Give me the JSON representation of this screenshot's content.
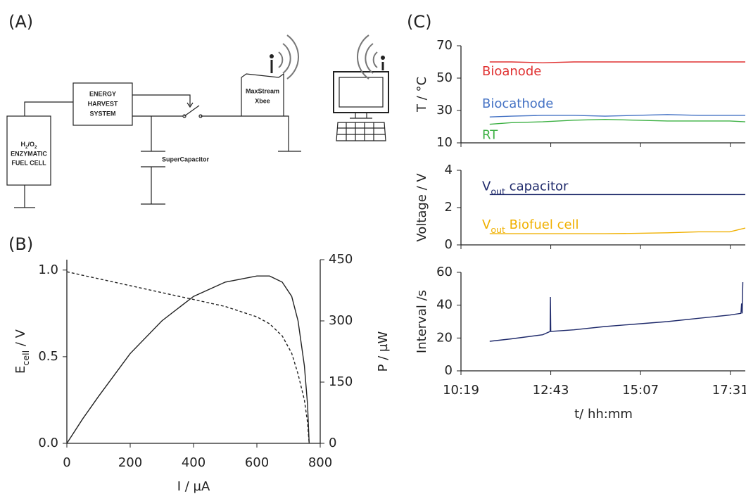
{
  "panel_labels": [
    "(A)",
    "(B)",
    "(C)"
  ],
  "diagram": {
    "fuel_cell": [
      "H2/O2",
      "ENZYMATIC",
      "FUEL CELL"
    ],
    "harvest": [
      "ENERGY",
      "HARVEST",
      "SYSTEM"
    ],
    "capacitor": "SuperCapacitor",
    "xbee": [
      "MaxStream",
      "Xbee"
    ]
  },
  "chart_data": [
    {
      "type": "line",
      "xlabel": "I / µA",
      "ylabel": "Ecell / V",
      "y2label": "P / µW",
      "x": [
        0,
        50,
        100,
        200,
        300,
        400,
        500,
        600,
        640,
        680,
        710,
        730,
        750,
        760,
        765
      ],
      "series": [
        {
          "color": "#222222",
          "linestyle": "dashed",
          "values": [
            0.99,
            0.97,
            0.95,
            0.91,
            0.87,
            0.83,
            0.79,
            0.73,
            0.69,
            0.62,
            0.52,
            0.4,
            0.25,
            0.12,
            0
          ]
        },
        {
          "color": "#222222",
          "linestyle": "solid",
          "axis": "y2",
          "values": [
            0,
            60,
            115,
            220,
            300,
            360,
            395,
            410,
            410,
            395,
            360,
            300,
            190,
            95,
            0
          ]
        }
      ],
      "xlim": [
        0,
        800
      ],
      "xticks": [
        0,
        200,
        400,
        600,
        800
      ],
      "ylim": [
        0,
        1.06
      ],
      "yticks": [
        {
          "value": 0,
          "label": "0.0"
        },
        {
          "value": 0.5,
          "label": "0.5"
        },
        {
          "value": 1,
          "label": "1.0"
        }
      ],
      "y2lim": [
        0,
        450
      ],
      "y2ticks": [
        0,
        150,
        300,
        450
      ]
    },
    {
      "type": "line",
      "ylabel": "T / °C",
      "x": [
        665,
        700,
        750,
        800,
        850,
        900,
        950,
        1000,
        1050,
        1075
      ],
      "series": [
        {
          "name": "Bioanode",
          "color": "#e03030",
          "values": [
            60,
            60,
            59.5,
            60,
            60,
            60,
            60,
            60,
            60,
            60
          ]
        },
        {
          "name": "Biocathode",
          "color": "#4472c4",
          "values": [
            26,
            26.5,
            27,
            27,
            26.5,
            27,
            27.5,
            27,
            27,
            27
          ]
        },
        {
          "name": "RT",
          "color": "#3cb043",
          "values": [
            21.5,
            22.5,
            23,
            24,
            24.5,
            24,
            23.5,
            23.5,
            23.5,
            23
          ]
        }
      ],
      "xlim": [
        619,
        1075
      ],
      "ylim": [
        10,
        70
      ],
      "yticks": [
        10,
        30,
        50,
        70
      ]
    },
    {
      "type": "line",
      "ylabel": "Voltage / V",
      "x": [
        665,
        700,
        750,
        800,
        850,
        900,
        950,
        1000,
        1050,
        1075
      ],
      "series": [
        {
          "name": "Vout capacitor",
          "color": "#1f2a6b",
          "values": [
            2.7,
            2.7,
            2.7,
            2.7,
            2.7,
            2.7,
            2.7,
            2.7,
            2.7,
            2.7
          ]
        },
        {
          "name": "Vout Biofuel cell",
          "color": "#f0b000",
          "values": [
            0.6,
            0.6,
            0.6,
            0.6,
            0.6,
            0.62,
            0.65,
            0.7,
            0.7,
            0.9
          ]
        }
      ],
      "xlim": [
        619,
        1075
      ],
      "ylim": [
        0,
        4
      ],
      "yticks": [
        0,
        2,
        4
      ]
    },
    {
      "type": "line",
      "ylabel": "Interval /s",
      "xlabel": "t/ hh:mm",
      "x": [
        665,
        700,
        750,
        762,
        762.5,
        763,
        800,
        850,
        900,
        950,
        1000,
        1050,
        1068,
        1069,
        1070,
        1071
      ],
      "series": [
        {
          "color": "#1f2a6b",
          "values": [
            18,
            19.5,
            22,
            24,
            45,
            24,
            25,
            27,
            28.5,
            30,
            32,
            34,
            35,
            41,
            35,
            54
          ]
        }
      ],
      "xlim": [
        619,
        1075
      ],
      "ylim": [
        0,
        60
      ],
      "yticks": [
        0,
        20,
        40,
        60
      ],
      "xticks": [
        {
          "value": 619,
          "label": "10:19"
        },
        {
          "value": 763,
          "label": "12:43"
        },
        {
          "value": 907,
          "label": "15:07"
        },
        {
          "value": 1051,
          "label": "17:31"
        }
      ]
    }
  ]
}
